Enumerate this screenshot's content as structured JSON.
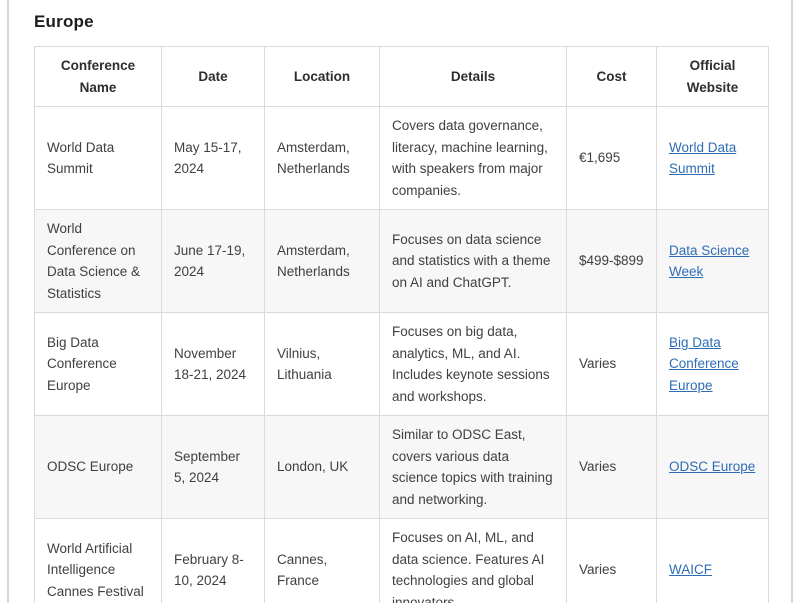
{
  "page": {
    "title": "Europe"
  },
  "table": {
    "headers": [
      "Conference Name",
      "Date",
      "Location",
      "Details",
      "Cost",
      "Official Website"
    ],
    "rows": [
      {
        "name": "World Data Summit",
        "date": "May 15-17, 2024",
        "location": "Amsterdam, Netherlands",
        "details": "Covers data governance, literacy, machine learning, with speakers from major companies.",
        "cost": "€1,695",
        "website": "World Data Summit"
      },
      {
        "name": "World Conference on Data Science & Statistics",
        "date": "June 17-19, 2024",
        "location": "Amsterdam, Netherlands",
        "details": "Focuses on data science and statistics with a theme on AI and ChatGPT.",
        "cost": "$499-$899",
        "website": "Data Science Week"
      },
      {
        "name": "Big Data Conference Europe",
        "date": "November 18-21, 2024",
        "location": "Vilnius, Lithuania",
        "details": "Focuses on big data, analytics, ML, and AI. Includes keynote sessions and workshops.",
        "cost": "Varies",
        "website": "Big Data Conference Europe"
      },
      {
        "name": "ODSC Europe",
        "date": "September 5, 2024",
        "location": "London, UK",
        "details": "Similar to ODSC East, covers various data science topics with training and networking.",
        "cost": "Varies",
        "website": "ODSC Europe"
      },
      {
        "name": "World Artificial Intelligence Cannes Festival",
        "date": "February 8-10, 2024",
        "location": "Cannes, France",
        "details": "Focuses on AI, ML, and data science. Features AI technologies and global innovators.",
        "cost": "Varies",
        "website": "WAICF"
      }
    ]
  },
  "colors": {
    "link": "#2e6db5",
    "cell_border": "#dadada",
    "row_stripe": "#f7f7f7",
    "body_text": "#404040",
    "frame_border": "#d2d9dc"
  }
}
